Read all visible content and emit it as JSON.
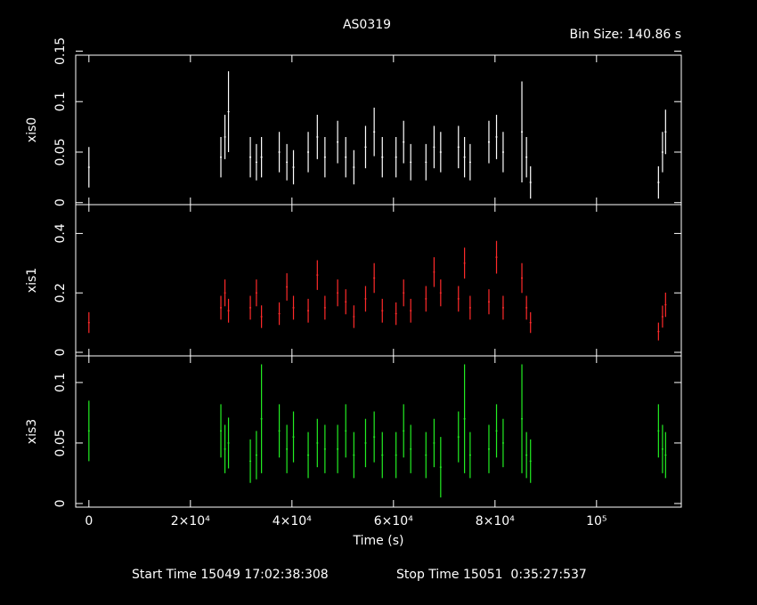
{
  "title": "AS0319",
  "subtitle": "Bin Size: 140.86 s",
  "start_time": "Start Time 15049 17:02:38:308",
  "stop_time": "Stop Time 15051  0:35:27:537",
  "chart_data": [
    {
      "type": "scatter",
      "x": [
        0,
        26000,
        26800,
        27500,
        31800,
        33000,
        34000,
        37500,
        39000,
        40300,
        43200,
        45000,
        46500,
        49000,
        50600,
        52200,
        54500,
        56200,
        57800,
        60500,
        62000,
        63400,
        66400,
        68000,
        69300,
        72800,
        74000,
        75100,
        78800,
        80300,
        81600,
        85300,
        86200,
        87000,
        112200,
        113000,
        113600
      ],
      "series": [
        {
          "name": "xis0",
          "color": "#ffffff",
          "values": [
            0.035,
            0.045,
            0.065,
            0.09,
            0.045,
            0.04,
            0.045,
            0.05,
            0.04,
            0.035,
            0.05,
            0.065,
            0.045,
            0.06,
            0.045,
            0.035,
            0.055,
            0.07,
            0.045,
            0.045,
            0.06,
            0.04,
            0.04,
            0.055,
            0.05,
            0.055,
            0.045,
            0.04,
            0.06,
            0.065,
            0.05,
            0.07,
            0.045,
            0.02,
            0.02,
            0.05,
            0.07
          ],
          "errors": [
            0.02,
            0.02,
            0.022,
            0.04,
            0.02,
            0.018,
            0.02,
            0.02,
            0.018,
            0.017,
            0.02,
            0.022,
            0.02,
            0.021,
            0.02,
            0.017,
            0.021,
            0.024,
            0.02,
            0.02,
            0.021,
            0.018,
            0.018,
            0.021,
            0.02,
            0.021,
            0.02,
            0.018,
            0.021,
            0.022,
            0.02,
            0.05,
            0.02,
            0.016,
            0.016,
            0.02,
            0.022
          ]
        }
      ],
      "xlim": [
        -2600,
        116700
      ],
      "ylim": [
        -0.002,
        0.146
      ],
      "yticks": [
        0,
        0.05,
        0.1,
        0.15
      ]
    },
    {
      "type": "scatter",
      "x": [
        0,
        26000,
        26800,
        27500,
        31800,
        33000,
        34000,
        37500,
        39000,
        40300,
        43200,
        45000,
        46500,
        49000,
        50600,
        52200,
        54500,
        56200,
        57800,
        60500,
        62000,
        63400,
        66400,
        68000,
        69300,
        72800,
        74000,
        75100,
        78800,
        80300,
        81600,
        85300,
        86200,
        87000,
        112200,
        113000,
        113600
      ],
      "series": [
        {
          "name": "xis1",
          "color": "#ff2a2a",
          "values": [
            0.1,
            0.15,
            0.2,
            0.14,
            0.15,
            0.2,
            0.12,
            0.13,
            0.22,
            0.15,
            0.14,
            0.26,
            0.15,
            0.2,
            0.17,
            0.12,
            0.18,
            0.25,
            0.14,
            0.13,
            0.2,
            0.14,
            0.18,
            0.27,
            0.2,
            0.18,
            0.3,
            0.15,
            0.17,
            0.32,
            0.15,
            0.25,
            0.15,
            0.1,
            0.07,
            0.12,
            0.16
          ],
          "errors": [
            0.035,
            0.04,
            0.045,
            0.04,
            0.04,
            0.045,
            0.038,
            0.038,
            0.046,
            0.04,
            0.04,
            0.05,
            0.04,
            0.045,
            0.042,
            0.038,
            0.043,
            0.05,
            0.04,
            0.038,
            0.045,
            0.04,
            0.043,
            0.05,
            0.045,
            0.043,
            0.052,
            0.04,
            0.042,
            0.055,
            0.04,
            0.05,
            0.04,
            0.035,
            0.03,
            0.037,
            0.041
          ]
        }
      ],
      "xlim": [
        -2600,
        116700
      ],
      "ylim": [
        -0.012,
        0.497
      ],
      "yticks": [
        0,
        0.2,
        0.4
      ]
    },
    {
      "type": "scatter",
      "x": [
        0,
        26000,
        26800,
        27500,
        31800,
        33000,
        34000,
        37500,
        39000,
        40300,
        43200,
        45000,
        46500,
        49000,
        50600,
        52200,
        54500,
        56200,
        57800,
        60500,
        62000,
        63400,
        66400,
        68000,
        69300,
        72800,
        74000,
        75100,
        78800,
        80300,
        81600,
        85300,
        86200,
        87000,
        112200,
        113000,
        113600
      ],
      "series": [
        {
          "name": "xis3",
          "color": "#22ee22",
          "values": [
            0.06,
            0.06,
            0.045,
            0.05,
            0.035,
            0.04,
            0.07,
            0.06,
            0.045,
            0.055,
            0.04,
            0.05,
            0.045,
            0.045,
            0.06,
            0.04,
            0.05,
            0.055,
            0.04,
            0.04,
            0.06,
            0.045,
            0.04,
            0.05,
            0.03,
            0.055,
            0.07,
            0.04,
            0.045,
            0.06,
            0.05,
            0.07,
            0.04,
            0.035,
            0.06,
            0.045,
            0.04
          ],
          "errors": [
            0.025,
            0.022,
            0.02,
            0.021,
            0.018,
            0.02,
            0.045,
            0.022,
            0.02,
            0.021,
            0.019,
            0.02,
            0.02,
            0.02,
            0.022,
            0.019,
            0.02,
            0.021,
            0.019,
            0.019,
            0.022,
            0.02,
            0.019,
            0.02,
            0.025,
            0.021,
            0.045,
            0.019,
            0.02,
            0.022,
            0.02,
            0.045,
            0.019,
            0.018,
            0.022,
            0.02,
            0.019
          ]
        }
      ],
      "xlim": [
        -2600,
        116700
      ],
      "ylim": [
        -0.003,
        0.122
      ],
      "yticks": [
        0,
        0.05,
        0.1
      ],
      "xticks": [
        0,
        {
          "value": 20000,
          "label": "2×10⁴"
        },
        {
          "value": 40000,
          "label": "4×10⁴"
        },
        {
          "value": 60000,
          "label": "6×10⁴"
        },
        {
          "value": 80000,
          "label": "8×10⁴"
        },
        {
          "value": 100000,
          "label": "10⁵"
        }
      ],
      "xlabel": "Time (s)"
    }
  ]
}
